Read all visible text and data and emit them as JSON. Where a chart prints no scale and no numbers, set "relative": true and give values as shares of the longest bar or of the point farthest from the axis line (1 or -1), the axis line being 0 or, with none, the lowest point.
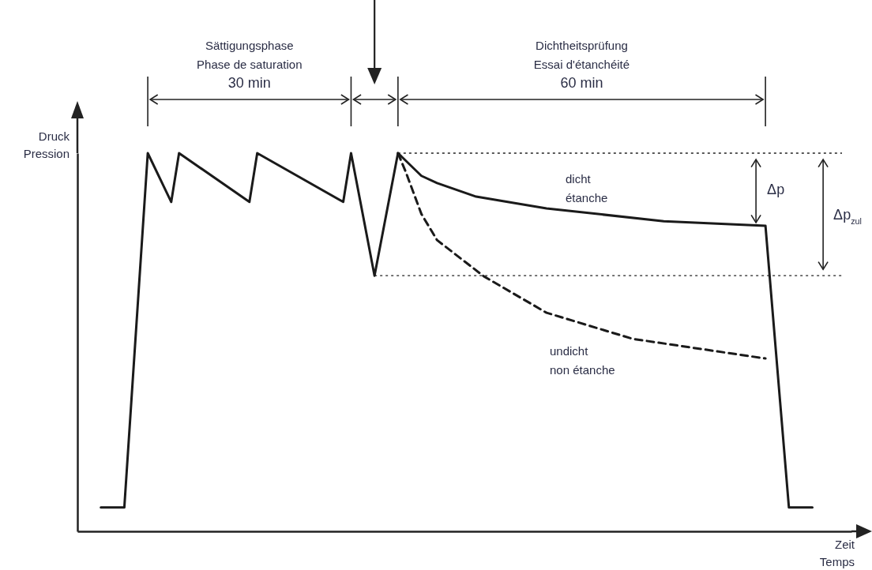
{
  "chart_data": {
    "type": "line",
    "relative": true,
    "ylabel": "Druck\nPression",
    "xlabel": "Zeit\nTemps",
    "categories": [
      null,
      null,
      null,
      null,
      null,
      null,
      null,
      null,
      null,
      null,
      null,
      null,
      null,
      null,
      null,
      null,
      null,
      null,
      null,
      null,
      null,
      null,
      null,
      null,
      null,
      null,
      null,
      null,
      null,
      null,
      null,
      null,
      null,
      null,
      null,
      null,
      null,
      null,
      null,
      null,
      null,
      null,
      null,
      null,
      null,
      null,
      null,
      null,
      null,
      null,
      null,
      null,
      null,
      null,
      null,
      null,
      null,
      null,
      null,
      null,
      null,
      null,
      null,
      null,
      null,
      null,
      null,
      null,
      null,
      null,
      null,
      null,
      null,
      null,
      null,
      null,
      null,
      null,
      null,
      null,
      null,
      null,
      null,
      null,
      null,
      null,
      null,
      null,
      null,
      null,
      null,
      null,
      null,
      null,
      null,
      null,
      null,
      null,
      null,
      null
    ],
    "series": [
      {
        "color": "#1a1a1a",
        "line_style": "solid",
        "values": [
          null,
          null,
          null,
          0.063,
          null,
          null,
          0.063,
          null,
          null,
          1,
          null,
          null,
          0.871,
          1,
          null,
          null,
          null,
          null,
          null,
          null,
          null,
          null,
          0.871,
          1,
          null,
          null,
          null,
          null,
          null,
          null,
          null,
          null,
          null,
          null,
          0.871,
          1,
          null,
          null,
          0.676,
          null,
          null,
          1,
          null,
          null,
          0.94,
          null,
          0.921,
          null,
          null,
          null,
          null,
          0.885,
          null,
          null,
          null,
          null,
          null,
          null,
          null,
          null,
          0.854,
          null,
          null,
          null,
          null,
          null,
          null,
          null,
          null,
          null,
          null,
          null,
          null,
          null,
          null,
          0.82,
          null,
          null,
          null,
          null,
          null,
          null,
          null,
          null,
          null,
          null,
          null,
          null,
          0.808,
          null,
          null,
          0.063,
          null,
          null,
          0.063,
          null,
          null,
          null,
          null,
          null
        ]
      },
      {
        "color": "#1a1a1a",
        "line_style": "dashed",
        "values": [
          null,
          null,
          null,
          null,
          null,
          null,
          null,
          null,
          null,
          null,
          null,
          null,
          null,
          null,
          null,
          null,
          null,
          null,
          null,
          null,
          null,
          null,
          null,
          null,
          null,
          null,
          null,
          null,
          null,
          null,
          null,
          null,
          null,
          null,
          null,
          null,
          null,
          null,
          null,
          null,
          null,
          1,
          0.95,
          null,
          0.839,
          null,
          0.77,
          null,
          null,
          null,
          null,
          null,
          0.674,
          null,
          null,
          null,
          null,
          null,
          null,
          null,
          0.578,
          null,
          null,
          null,
          null,
          null,
          null,
          null,
          null,
          null,
          null,
          0.509,
          null,
          null,
          null,
          null,
          null,
          null,
          null,
          null,
          null,
          null,
          null,
          null,
          null,
          null,
          null,
          null,
          0.457,
          null,
          null,
          null,
          null,
          null,
          null,
          null,
          null,
          null,
          null,
          null
        ]
      }
    ],
    "ref_lines": [
      {
        "axis": "y",
        "value": 1,
        "line_style": "dotted"
      },
      {
        "axis": "y",
        "value": 0.676,
        "line_style": "dotted"
      }
    ],
    "annotations": [
      "Sättigungsphase\nPhase de saturation\n30 min",
      "Dichtheitsprüfung\nEssai d'étanchéité\n60 min",
      "dicht\nétanche",
      "undicht\nnon étanche",
      "Δp",
      "Δp$_{zul}$"
    ]
  }
}
